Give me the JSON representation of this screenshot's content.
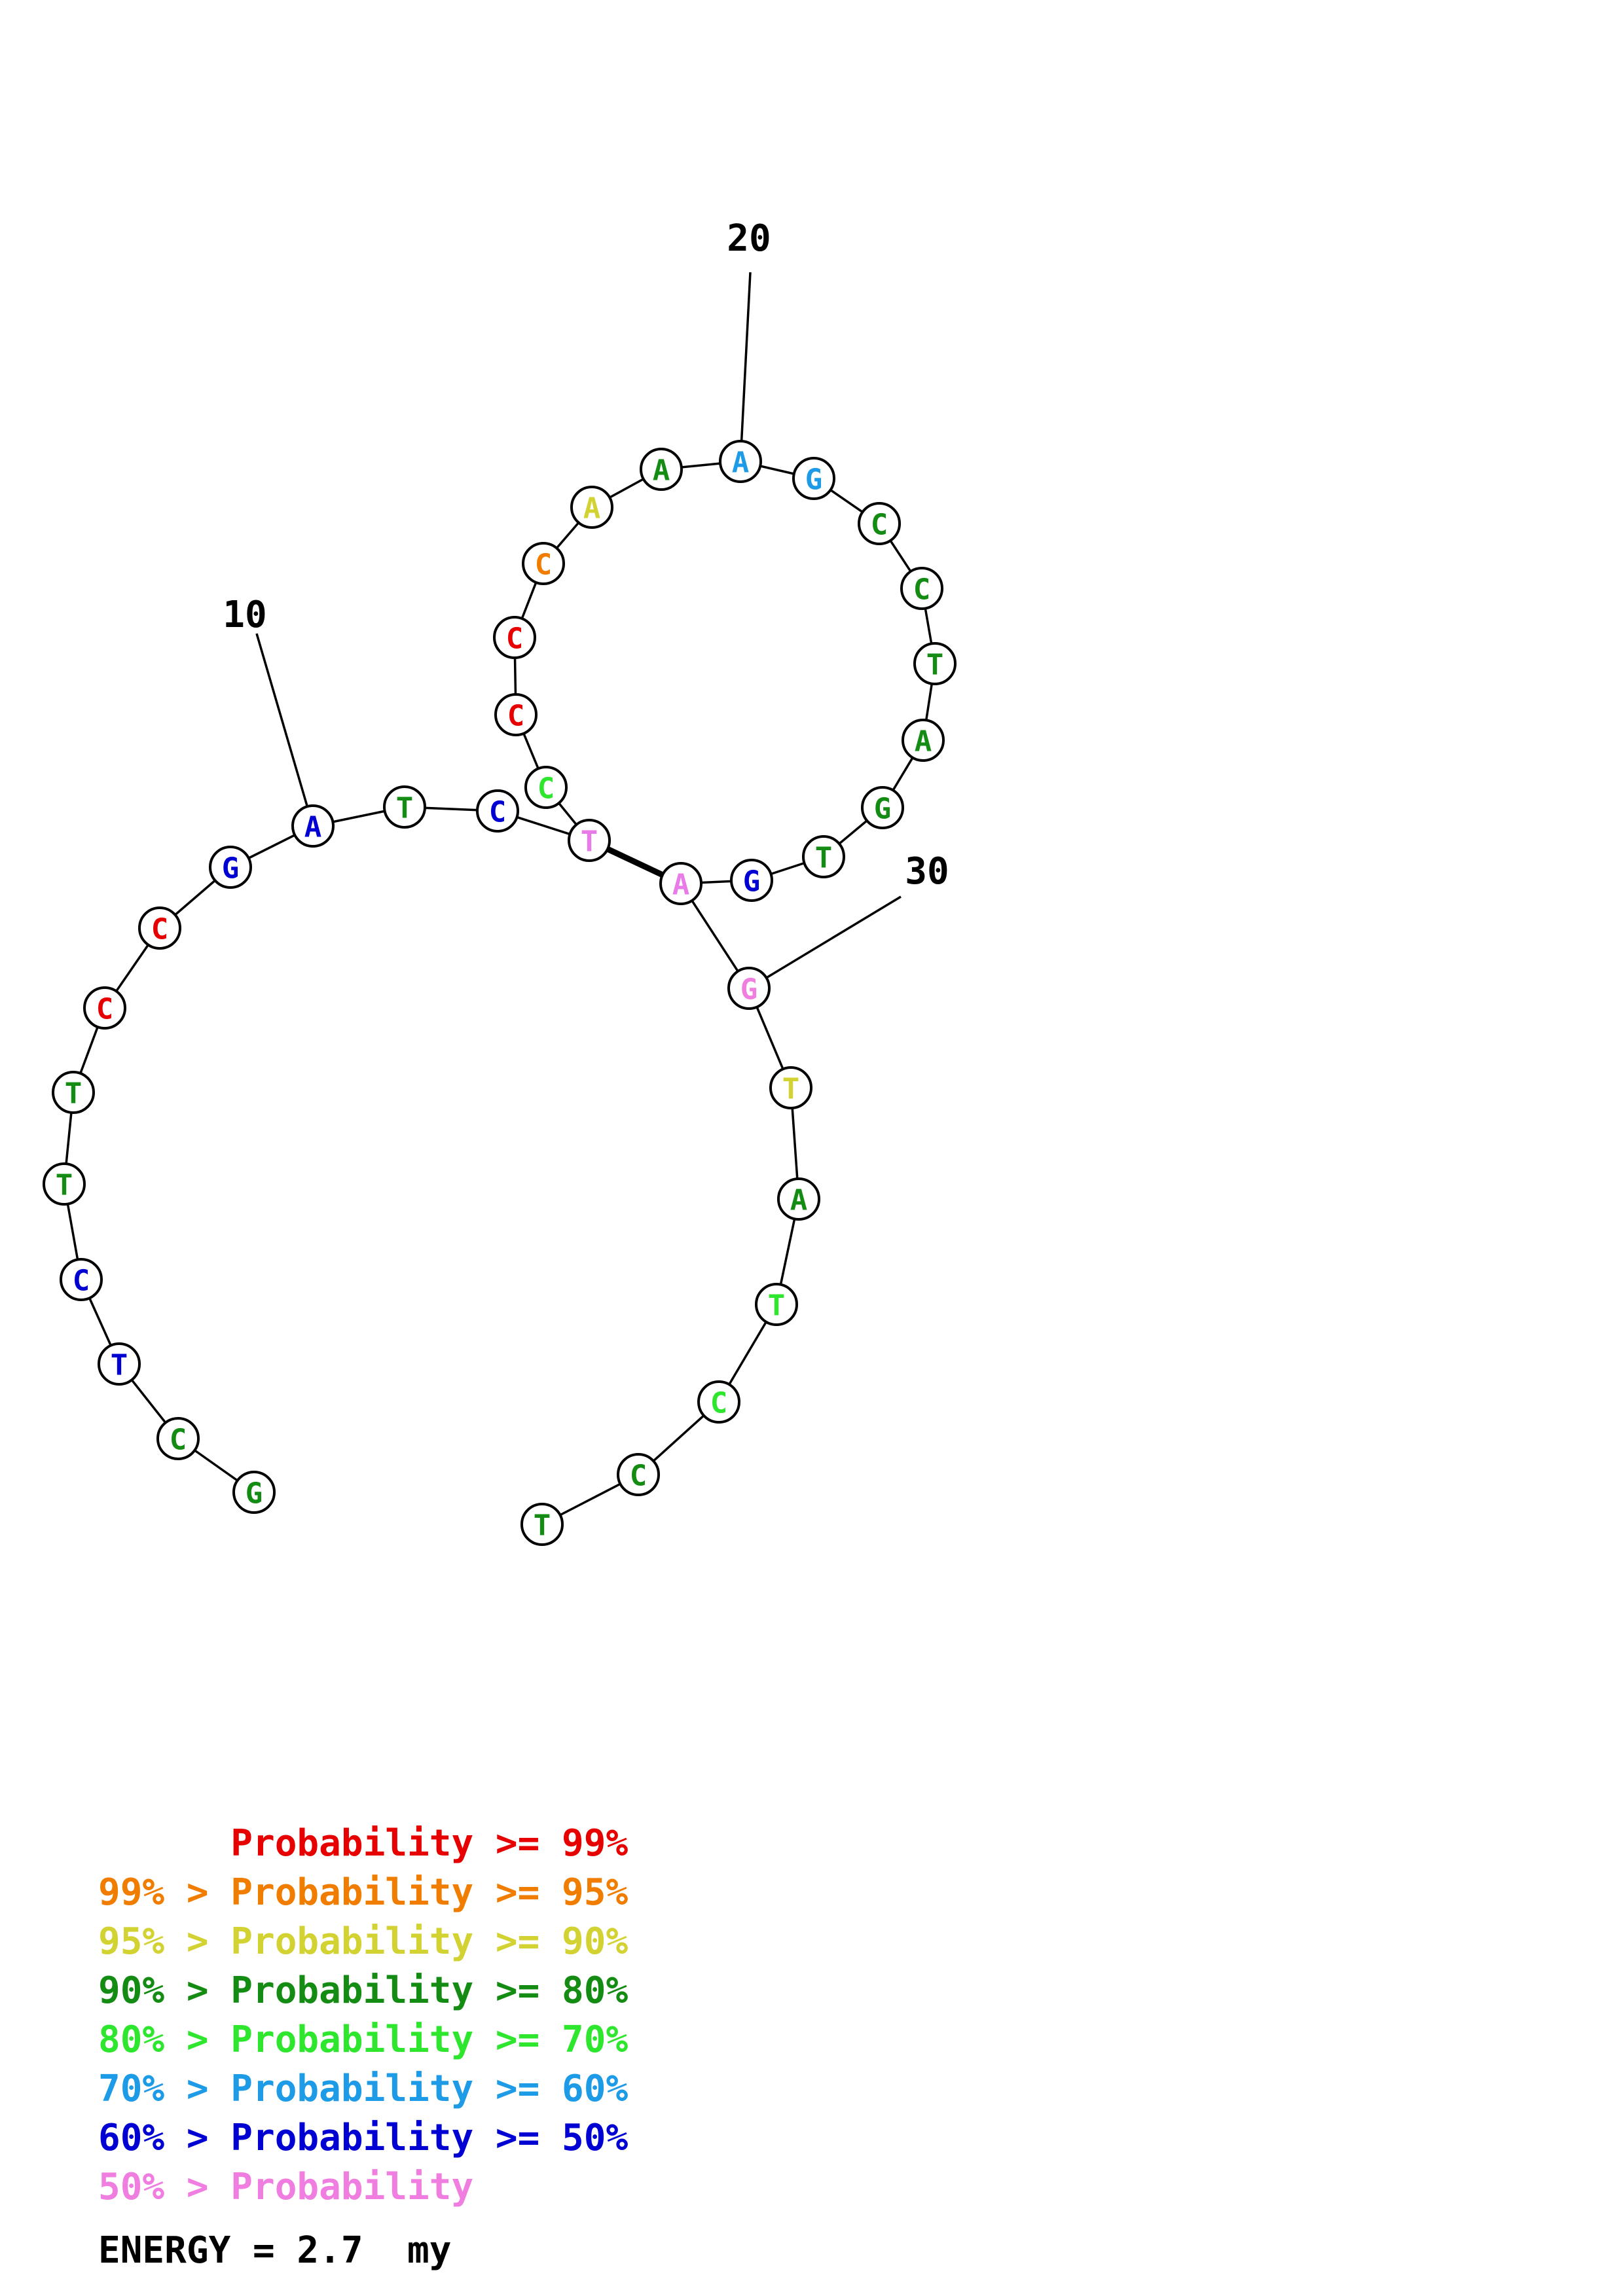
{
  "structure": {
    "sequence": [
      "G",
      "C",
      "T",
      "C",
      "T",
      "T",
      "C",
      "C",
      "G",
      "A",
      "T",
      "C",
      "T",
      "C",
      "C",
      "C",
      "C",
      "A",
      "A",
      "A",
      "G",
      "C",
      "C",
      "T",
      "A",
      "G",
      "T",
      "G",
      "A",
      "G",
      "T",
      "A",
      "T",
      "C",
      "C",
      "T"
    ],
    "nucleotide_colors": [
      "#148c14",
      "#148c14",
      "#0000d2",
      "#0000d2",
      "#148c14",
      "#148c14",
      "#e60000",
      "#e60000",
      "#0000d2",
      "#0000d2",
      "#148c14",
      "#0000d2",
      "#e87be8",
      "#2ee62e",
      "#e60000",
      "#e60000",
      "#f07d00",
      "#d2d232",
      "#148c14",
      "#1e9be6",
      "#1e9be6",
      "#148c14",
      "#148c14",
      "#148c14",
      "#148c14",
      "#148c14",
      "#148c14",
      "#0000d2",
      "#e87be8",
      "#f07de0",
      "#d2d232",
      "#148c14",
      "#2ee62e",
      "#2ee62e",
      "#148c14",
      "#148c14"
    ],
    "pairs": [
      [
        13,
        29
      ]
    ],
    "tick_labels": [
      {
        "index": 10,
        "label": "10"
      },
      {
        "index": 20,
        "label": "20"
      },
      {
        "index": 30,
        "label": "30"
      }
    ]
  },
  "legend": [
    {
      "prefix": "      ",
      "text": "Probability >= 99%",
      "color": "#e60000"
    },
    {
      "prefix": "",
      "text": "99% > Probability >= 95%",
      "color": "#f07d00"
    },
    {
      "prefix": "",
      "text": "95% > Probability >= 90%",
      "color": "#d2d232"
    },
    {
      "prefix": "",
      "text": "90% > Probability >= 80%",
      "color": "#148c14"
    },
    {
      "prefix": "",
      "text": "80% > Probability >= 70%",
      "color": "#2ee62e"
    },
    {
      "prefix": "",
      "text": "70% > Probability >= 60%",
      "color": "#1e9be6"
    },
    {
      "prefix": "",
      "text": "60% > Probability >= 50%",
      "color": "#0000d2"
    },
    {
      "prefix": "",
      "text": "50% > Probability",
      "color": "#f07de0"
    }
  ],
  "energy_text": "ENERGY = 2.7  my"
}
